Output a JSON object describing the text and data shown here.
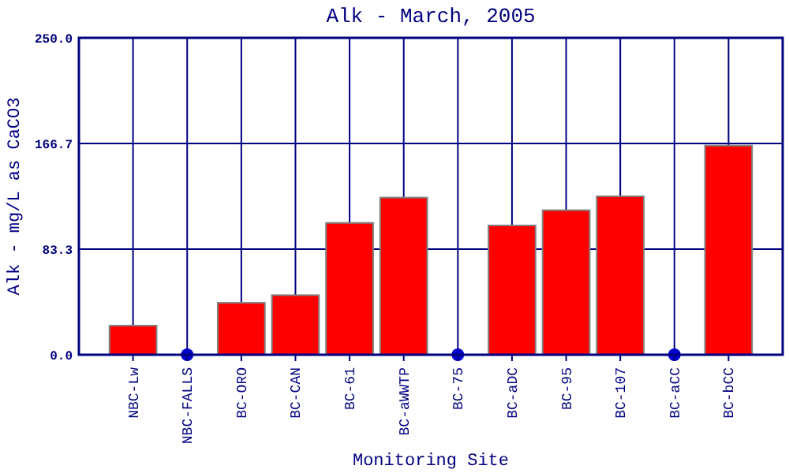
{
  "chart_data": {
    "type": "bar",
    "title": "Alk - March, 2005",
    "xlabel": "Monitoring Site",
    "ylabel": "Alk - mg/L as CaCO3",
    "categories": [
      "NBC-Lw",
      "NBC-FALLS",
      "BC-ORO",
      "BC-CAN",
      "BC-61",
      "BC-aWWTP",
      "BC-75",
      "BC-aDC",
      "BC-95",
      "BC-107",
      "BC-aCC",
      "BC-bCC"
    ],
    "series": [
      {
        "color": "#ff0000",
        "values": [
          23,
          null,
          41,
          47,
          104,
          124,
          null,
          102,
          114,
          125,
          null,
          165
        ]
      },
      {
        "type": "scatter",
        "color": "#0000cc",
        "x": [
          "NBC-FALLS",
          "BC-75",
          "BC-aCC"
        ],
        "values": [
          0,
          0,
          0
        ]
      }
    ],
    "ylim": [
      0,
      250
    ],
    "yticks": [
      {
        "value": 0,
        "label": "0.0"
      },
      {
        "value": 83.3,
        "label": "83.3"
      },
      {
        "value": 166.7,
        "label": "166.7"
      },
      {
        "value": 250,
        "label": "250.0"
      }
    ],
    "grid": true,
    "marker": "circle"
  }
}
